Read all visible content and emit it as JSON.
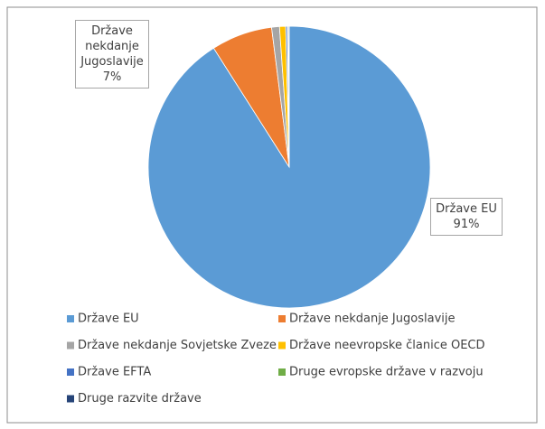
{
  "chart_data": {
    "type": "pie",
    "categories": [
      "Države EU",
      "Države nekdanje Jugoslavije",
      "Države nekdanje Sovjetske Zveze",
      "Države neevropske članice OECD",
      "Države EFTA",
      "Druge evropske države v razvoju",
      "Druge razvite države"
    ],
    "values": [
      91,
      7,
      0.9,
      0.7,
      0.2,
      0.1,
      0.1
    ],
    "value_labels": [
      "91%",
      "7%",
      null,
      null,
      null,
      null,
      null
    ],
    "colors": [
      "#5b9bd5",
      "#ed7d31",
      "#a5a5a5",
      "#ffc000",
      "#4472c4",
      "#70ad47",
      "#264478"
    ],
    "legend": "bottom"
  }
}
